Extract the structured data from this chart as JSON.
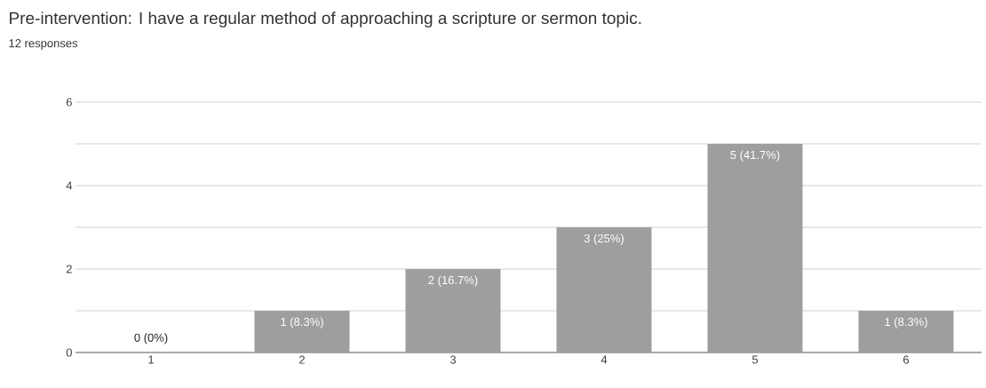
{
  "chart_data": {
    "type": "bar",
    "title": "Pre-intervention: I have a regular method of approaching a scripture or sermon topic.",
    "subtitle": "12 responses",
    "categories": [
      "1",
      "2",
      "3",
      "4",
      "5",
      "6"
    ],
    "values": [
      0,
      1,
      2,
      3,
      5,
      1
    ],
    "value_labels": [
      "0 (0%)",
      "1 (8.3%)",
      "2 (16.7%)",
      "3 (25%)",
      "5 (41.7%)",
      "1 (8.3%)"
    ],
    "color": "#9e9e9e",
    "ylim": [
      0,
      6
    ],
    "yticks": [
      0,
      {
        "value": 1,
        "label": null
      },
      2,
      {
        "value": 3,
        "label": null
      },
      4,
      {
        "value": 5,
        "label": null
      },
      6
    ],
    "grid": "y"
  }
}
